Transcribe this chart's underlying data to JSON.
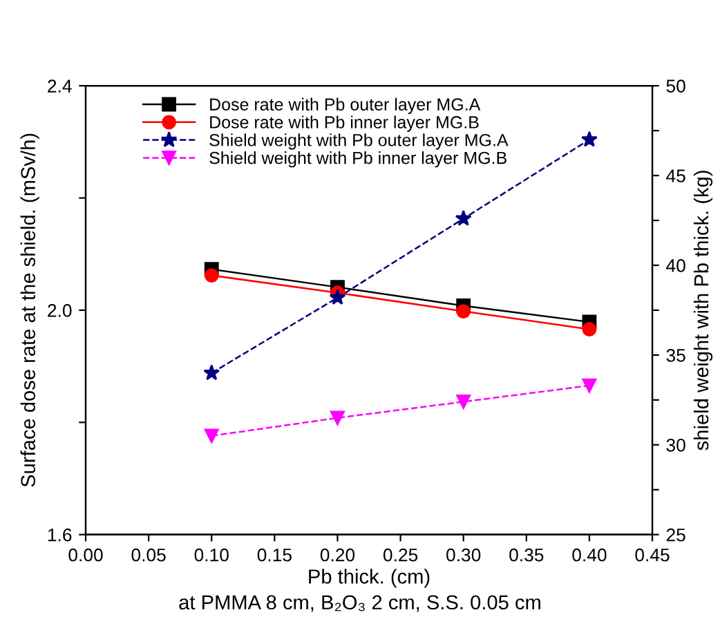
{
  "chart_data": {
    "type": "line",
    "xlabel": "Pb thick. (cm)",
    "ylabel": "Surface dose rate at the shield. (mSv/h)",
    "y2label": "shield weight with Pb thick. (kg)",
    "annotations": [
      "at PMMA 8 cm, B₂O₃ 2 cm, S.S. 0.05 cm"
    ],
    "x": [
      0.1,
      0.2,
      0.3,
      0.4
    ],
    "series": [
      {
        "name": "Dose rate with Pb outer layer MG.A",
        "color": "#000000",
        "values": [
          2.073,
          2.041,
          2.008,
          1.979
        ],
        "marker": "square",
        "line_style": "solid"
      },
      {
        "name": "Dose rate with Pb inner layer MG.B",
        "color": "#ff0000",
        "values": [
          2.062,
          2.031,
          1.998,
          1.966
        ],
        "marker": "circle",
        "line_style": "solid"
      },
      {
        "name": "Shield weight with Pb outer layer MG.A",
        "color": "#000080",
        "values": [
          34.0,
          38.2,
          42.6,
          47.0
        ],
        "marker": "star",
        "line_style": "dashed",
        "axis": "y2"
      },
      {
        "name": "Shield weight with Pb inner layer MG.B",
        "color": "#ff00ff",
        "values": [
          30.5,
          31.5,
          32.4,
          33.3
        ],
        "marker": "triangle",
        "line_style": "dashed",
        "axis": "y2"
      }
    ],
    "xlim": [
      0.0,
      0.45
    ],
    "xticks": [
      {
        "value": 0.0,
        "label": "0.00"
      },
      0.05,
      {
        "value": 0.1,
        "label": "0.10"
      },
      0.15,
      {
        "value": 0.2,
        "label": "0.20"
      },
      0.25,
      {
        "value": 0.3,
        "label": "0.30"
      },
      0.35,
      {
        "value": 0.4,
        "label": "0.40"
      },
      0.45
    ],
    "ylim": [
      1.6,
      2.4
    ],
    "yticks": [
      1.6,
      {
        "value": 1.8,
        "label": null
      },
      {
        "value": 2.0,
        "label": "2.0"
      },
      {
        "value": 2.2,
        "label": null
      },
      2.4
    ],
    "y2lim": [
      25,
      50
    ],
    "y2ticks": [
      25,
      {
        "value": 27.5,
        "label": null
      },
      30,
      {
        "value": 32.5,
        "label": null
      },
      35,
      {
        "value": 37.5,
        "label": null
      },
      40,
      {
        "value": 42.5,
        "label": null
      },
      45,
      {
        "value": 47.5,
        "label": null
      },
      50
    ],
    "grid": false,
    "legend": "top left"
  }
}
